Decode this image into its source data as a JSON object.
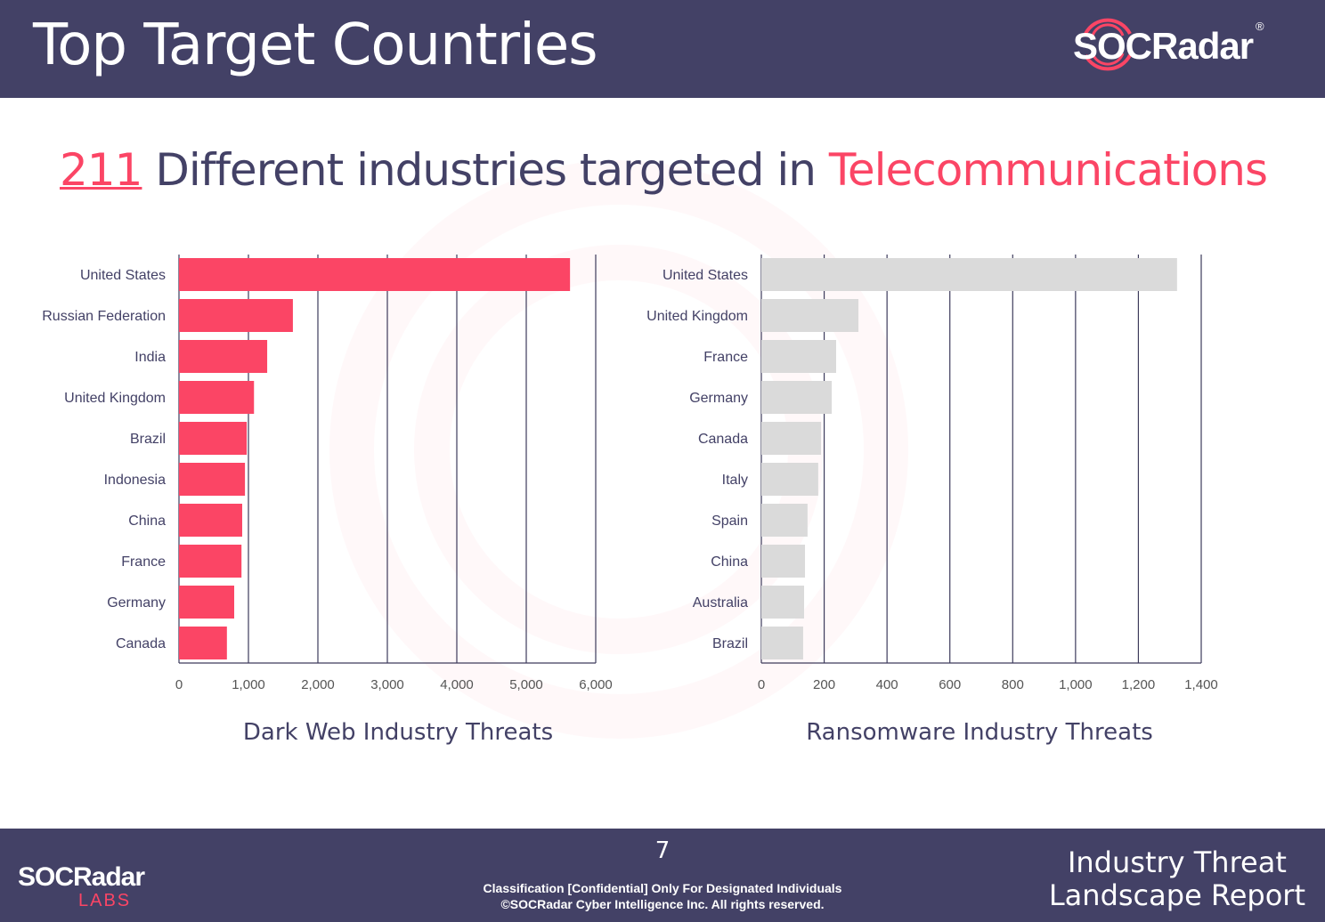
{
  "header": {
    "title": "Top Target Countries",
    "logo": "SOCRadar",
    "logo_mark": "®"
  },
  "headline": {
    "count": "211",
    "middle": " Different industries targeted in ",
    "industry": "Telecommunications"
  },
  "colors": {
    "brand_dark": "#434166",
    "accent": "#fb4565",
    "grey_bar": "#dadada"
  },
  "chart_data": [
    {
      "type": "bar",
      "orientation": "horizontal",
      "title": "Dark Web Industry Threats",
      "categories": [
        "United States",
        "Russian Federation",
        "India",
        "United Kingdom",
        "Brazil",
        "Indonesia",
        "China",
        "France",
        "Germany",
        "Canada"
      ],
      "values": [
        5630,
        1640,
        1270,
        1080,
        975,
        950,
        910,
        900,
        795,
        690
      ],
      "xlim": [
        0,
        6000
      ],
      "ticks": [
        0,
        1000,
        2000,
        3000,
        4000,
        5000,
        6000
      ],
      "tick_labels": [
        "0",
        "1,000",
        "2,000",
        "3,000",
        "4,000",
        "5,000",
        "6,000"
      ],
      "grid": true,
      "color": "#fb4565"
    },
    {
      "type": "bar",
      "orientation": "horizontal",
      "title": "Ransomware Industry Threats",
      "categories": [
        "United States",
        "United Kingdom",
        "France",
        "Germany",
        "Canada",
        "Italy",
        "Spain",
        "China",
        "Australia",
        "Brazil"
      ],
      "values": [
        1323,
        309,
        238,
        224,
        190,
        181,
        147,
        139,
        136,
        133
      ],
      "xlim": [
        0,
        1400
      ],
      "ticks": [
        0,
        200,
        400,
        600,
        800,
        1000,
        1200,
        1400
      ],
      "tick_labels": [
        "0",
        "200",
        "400",
        "600",
        "800",
        "1,000",
        "1,200",
        "1,400"
      ],
      "grid": true,
      "color": "#dadada"
    }
  ],
  "footer": {
    "page": "7",
    "classification": "Classification [Confidential] Only For Designated Individuals",
    "copyright": "©SOCRadar Cyber Intelligence Inc. All rights reserved.",
    "report_line1": "Industry Threat",
    "report_line2": "Landscape Report",
    "logo": "SOCRadar",
    "logo_sub": "LABS"
  }
}
